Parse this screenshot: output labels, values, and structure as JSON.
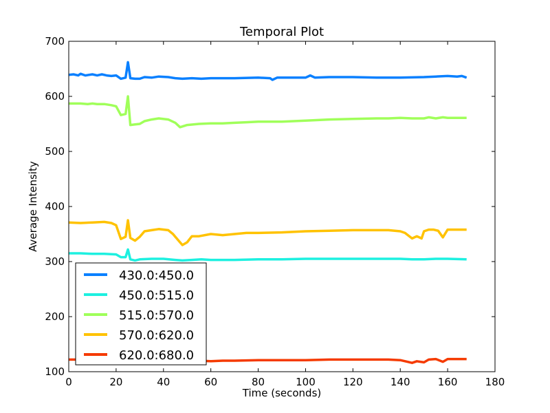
{
  "chart_data": {
    "type": "line",
    "title": "Temporal Plot",
    "xlabel": "Time (seconds)",
    "ylabel": "Average Intensity",
    "xlim": [
      0,
      180
    ],
    "ylim": [
      100,
      700
    ],
    "xticks": [
      0,
      20,
      40,
      60,
      80,
      100,
      120,
      140,
      160,
      180
    ],
    "yticks": [
      100,
      200,
      300,
      400,
      500,
      600,
      700
    ],
    "grid": false,
    "legend_position": "lower-left",
    "x_end": 168,
    "series": [
      {
        "name": "430.0:450.0",
        "color": "#0a80ff",
        "points": [
          [
            0,
            639
          ],
          [
            2,
            640
          ],
          [
            4,
            638
          ],
          [
            5,
            641
          ],
          [
            7,
            638
          ],
          [
            10,
            640
          ],
          [
            12,
            638
          ],
          [
            14,
            640
          ],
          [
            16,
            638
          ],
          [
            18,
            637
          ],
          [
            20,
            638
          ],
          [
            22,
            632
          ],
          [
            24,
            634
          ],
          [
            25,
            662
          ],
          [
            26,
            633
          ],
          [
            28,
            632
          ],
          [
            30,
            632
          ],
          [
            32,
            635
          ],
          [
            35,
            634
          ],
          [
            38,
            636
          ],
          [
            42,
            635
          ],
          [
            45,
            633
          ],
          [
            48,
            632
          ],
          [
            52,
            633
          ],
          [
            56,
            632
          ],
          [
            60,
            633
          ],
          [
            70,
            633
          ],
          [
            80,
            634
          ],
          [
            85,
            633
          ],
          [
            86,
            630
          ],
          [
            88,
            634
          ],
          [
            95,
            634
          ],
          [
            100,
            634
          ],
          [
            102,
            638
          ],
          [
            104,
            634
          ],
          [
            110,
            635
          ],
          [
            120,
            635
          ],
          [
            130,
            634
          ],
          [
            140,
            634
          ],
          [
            150,
            635
          ],
          [
            155,
            636
          ],
          [
            160,
            637
          ],
          [
            164,
            636
          ],
          [
            166,
            637
          ],
          [
            168,
            634
          ]
        ]
      },
      {
        "name": "450.0:515.0",
        "color": "#1df0e0",
        "points": [
          [
            0,
            315
          ],
          [
            5,
            315
          ],
          [
            10,
            314
          ],
          [
            15,
            314
          ],
          [
            20,
            313
          ],
          [
            22,
            308
          ],
          [
            24,
            308
          ],
          [
            25,
            322
          ],
          [
            26,
            304
          ],
          [
            28,
            302
          ],
          [
            30,
            304
          ],
          [
            35,
            305
          ],
          [
            40,
            305
          ],
          [
            45,
            303
          ],
          [
            48,
            302
          ],
          [
            52,
            303
          ],
          [
            56,
            304
          ],
          [
            60,
            303
          ],
          [
            70,
            303
          ],
          [
            80,
            304
          ],
          [
            90,
            304
          ],
          [
            100,
            305
          ],
          [
            110,
            305
          ],
          [
            120,
            305
          ],
          [
            130,
            305
          ],
          [
            140,
            305
          ],
          [
            145,
            304
          ],
          [
            150,
            304
          ],
          [
            155,
            305
          ],
          [
            160,
            305
          ],
          [
            168,
            304
          ]
        ]
      },
      {
        "name": "515.0:570.0",
        "color": "#a0ff5a",
        "points": [
          [
            0,
            587
          ],
          [
            5,
            587
          ],
          [
            8,
            586
          ],
          [
            10,
            587
          ],
          [
            12,
            586
          ],
          [
            15,
            586
          ],
          [
            18,
            584
          ],
          [
            20,
            582
          ],
          [
            22,
            566
          ],
          [
            24,
            568
          ],
          [
            25,
            600
          ],
          [
            26,
            548
          ],
          [
            28,
            549
          ],
          [
            30,
            550
          ],
          [
            32,
            555
          ],
          [
            35,
            558
          ],
          [
            38,
            560
          ],
          [
            42,
            558
          ],
          [
            45,
            552
          ],
          [
            47,
            544
          ],
          [
            50,
            548
          ],
          [
            55,
            550
          ],
          [
            60,
            551
          ],
          [
            65,
            551
          ],
          [
            70,
            552
          ],
          [
            75,
            553
          ],
          [
            80,
            554
          ],
          [
            90,
            554
          ],
          [
            100,
            556
          ],
          [
            110,
            558
          ],
          [
            120,
            559
          ],
          [
            130,
            560
          ],
          [
            135,
            560
          ],
          [
            140,
            561
          ],
          [
            145,
            560
          ],
          [
            150,
            560
          ],
          [
            152,
            562
          ],
          [
            155,
            560
          ],
          [
            158,
            562
          ],
          [
            160,
            561
          ],
          [
            165,
            561
          ],
          [
            168,
            561
          ]
        ]
      },
      {
        "name": "570.0:620.0",
        "color": "#ffc200",
        "points": [
          [
            0,
            371
          ],
          [
            5,
            370
          ],
          [
            10,
            371
          ],
          [
            15,
            372
          ],
          [
            18,
            370
          ],
          [
            20,
            366
          ],
          [
            22,
            341
          ],
          [
            24,
            345
          ],
          [
            25,
            375
          ],
          [
            26,
            343
          ],
          [
            28,
            338
          ],
          [
            30,
            345
          ],
          [
            32,
            355
          ],
          [
            35,
            357
          ],
          [
            38,
            359
          ],
          [
            42,
            357
          ],
          [
            44,
            350
          ],
          [
            46,
            340
          ],
          [
            48,
            330
          ],
          [
            50,
            335
          ],
          [
            52,
            346
          ],
          [
            55,
            346
          ],
          [
            60,
            350
          ],
          [
            65,
            348
          ],
          [
            70,
            350
          ],
          [
            75,
            352
          ],
          [
            80,
            352
          ],
          [
            90,
            353
          ],
          [
            100,
            355
          ],
          [
            110,
            356
          ],
          [
            120,
            357
          ],
          [
            130,
            357
          ],
          [
            135,
            357
          ],
          [
            140,
            355
          ],
          [
            142,
            352
          ],
          [
            145,
            342
          ],
          [
            147,
            346
          ],
          [
            149,
            342
          ],
          [
            150,
            355
          ],
          [
            152,
            358
          ],
          [
            154,
            358
          ],
          [
            156,
            356
          ],
          [
            158,
            344
          ],
          [
            160,
            358
          ],
          [
            163,
            358
          ],
          [
            166,
            358
          ],
          [
            168,
            358
          ]
        ]
      },
      {
        "name": "620.0:680.0",
        "color": "#f53a00",
        "points": [
          [
            0,
            122
          ],
          [
            5,
            122
          ],
          [
            10,
            122
          ],
          [
            15,
            121
          ],
          [
            20,
            121
          ],
          [
            25,
            121
          ],
          [
            30,
            121
          ],
          [
            35,
            121
          ],
          [
            40,
            121
          ],
          [
            45,
            120
          ],
          [
            50,
            120
          ],
          [
            55,
            120
          ],
          [
            60,
            119
          ],
          [
            65,
            120
          ],
          [
            70,
            120
          ],
          [
            80,
            121
          ],
          [
            90,
            121
          ],
          [
            100,
            121
          ],
          [
            110,
            122
          ],
          [
            120,
            122
          ],
          [
            130,
            122
          ],
          [
            135,
            122
          ],
          [
            140,
            121
          ],
          [
            143,
            118
          ],
          [
            145,
            116
          ],
          [
            147,
            119
          ],
          [
            150,
            117
          ],
          [
            152,
            122
          ],
          [
            155,
            123
          ],
          [
            158,
            118
          ],
          [
            160,
            123
          ],
          [
            163,
            123
          ],
          [
            166,
            123
          ],
          [
            168,
            123
          ]
        ]
      }
    ]
  }
}
